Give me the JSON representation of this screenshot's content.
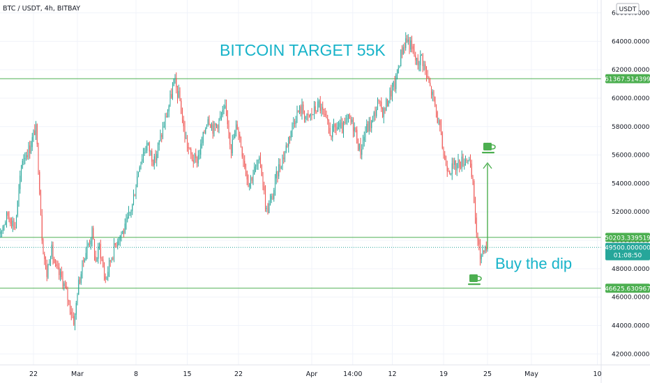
{
  "header": {
    "title": "BTC / USDT, 4h, BITBAY",
    "currency": "USDT"
  },
  "colors": {
    "up": "#26a69a",
    "down": "#ef5350",
    "level": "#4caf50",
    "annot": "#17b3c9",
    "price_badge": "#26a69a",
    "level_badge": "#4caf50"
  },
  "chart_data": {
    "type": "candlestick",
    "title": "BITCOIN TARGET 55K",
    "xlabel": "",
    "ylabel": "",
    "ylim": [
      41500,
      66800
    ],
    "x_ticks": [
      {
        "label": "22",
        "day": 22
      },
      {
        "label": "Mar",
        "day": 28
      },
      {
        "label": "8",
        "day": 36
      },
      {
        "label": "15",
        "day": 43
      },
      {
        "label": "22",
        "day": 50
      },
      {
        "label": "Apr",
        "day": 60
      },
      {
        "label": "14:00",
        "day": 65.6
      },
      {
        "label": "12",
        "day": 71
      },
      {
        "label": "19",
        "day": 78
      },
      {
        "label": "25",
        "day": 84
      },
      {
        "label": "May",
        "day": 90
      },
      {
        "label": "10",
        "day": 99
      }
    ],
    "y_ticks": [
      42000,
      44000,
      46000,
      48000,
      50000,
      52000,
      54000,
      56000,
      58000,
      60000,
      62000,
      64000,
      66000
    ],
    "y_tick_labels": [
      "42000.000000",
      "44000.000000",
      "46000.000000",
      "48000.000000",
      "50000.000000",
      "52000.000000",
      "54000.000000",
      "56000.000000",
      "58000.000000",
      "60000.000000",
      "62000.000000",
      "64000.000000",
      "66000.000000"
    ],
    "levels": [
      {
        "price": 61367.514399,
        "label": "61367.514399"
      },
      {
        "price": 50203.339519,
        "label": "50203.339519"
      },
      {
        "price": 46625.630967,
        "label": "46625.630967"
      }
    ],
    "last_price": {
      "price": 49500,
      "label": "49500.000000",
      "countdown": "01:08:50"
    },
    "annotations": [
      {
        "text": "BITCOIN TARGET 55K"
      },
      {
        "text": "Buy the dip"
      }
    ],
    "anchors": [
      {
        "day": 17.0,
        "price": 50200
      },
      {
        "day": 18.5,
        "price": 51800
      },
      {
        "day": 19.5,
        "price": 51000
      },
      {
        "day": 20.5,
        "price": 55800
      },
      {
        "day": 21.5,
        "price": 56500
      },
      {
        "day": 22.3,
        "price": 58000
      },
      {
        "day": 22.7,
        "price": 55000
      },
      {
        "day": 23.2,
        "price": 50000
      },
      {
        "day": 23.8,
        "price": 47500
      },
      {
        "day": 24.4,
        "price": 49500
      },
      {
        "day": 25.0,
        "price": 48000
      },
      {
        "day": 26.0,
        "price": 47200
      },
      {
        "day": 27.0,
        "price": 45300
      },
      {
        "day": 27.6,
        "price": 44200
      },
      {
        "day": 28.0,
        "price": 46500
      },
      {
        "day": 29.0,
        "price": 49000
      },
      {
        "day": 30.0,
        "price": 50500
      },
      {
        "day": 30.5,
        "price": 48500
      },
      {
        "day": 31.0,
        "price": 49600
      },
      {
        "day": 31.8,
        "price": 47200
      },
      {
        "day": 32.6,
        "price": 48800
      },
      {
        "day": 33.5,
        "price": 50200
      },
      {
        "day": 34.5,
        "price": 50800
      },
      {
        "day": 35.5,
        "price": 52500
      },
      {
        "day": 36.5,
        "price": 55500
      },
      {
        "day": 37.5,
        "price": 56800
      },
      {
        "day": 38.5,
        "price": 55500
      },
      {
        "day": 39.5,
        "price": 57500
      },
      {
        "day": 40.5,
        "price": 59500
      },
      {
        "day": 41.2,
        "price": 61200
      },
      {
        "day": 42.0,
        "price": 59800
      },
      {
        "day": 42.6,
        "price": 57500
      },
      {
        "day": 43.4,
        "price": 56000
      },
      {
        "day": 44.2,
        "price": 55500
      },
      {
        "day": 45.0,
        "price": 56800
      },
      {
        "day": 45.8,
        "price": 58800
      },
      {
        "day": 46.6,
        "price": 57800
      },
      {
        "day": 47.4,
        "price": 58500
      },
      {
        "day": 48.3,
        "price": 59200
      },
      {
        "day": 49.0,
        "price": 56500
      },
      {
        "day": 49.8,
        "price": 58200
      },
      {
        "day": 50.6,
        "price": 56000
      },
      {
        "day": 51.4,
        "price": 54000
      },
      {
        "day": 52.2,
        "price": 55000
      },
      {
        "day": 53.0,
        "price": 55500
      },
      {
        "day": 53.8,
        "price": 52000
      },
      {
        "day": 54.6,
        "price": 53000
      },
      {
        "day": 55.4,
        "price": 55000
      },
      {
        "day": 56.2,
        "price": 56000
      },
      {
        "day": 57.0,
        "price": 57500
      },
      {
        "day": 57.8,
        "price": 58800
      },
      {
        "day": 58.6,
        "price": 59300
      },
      {
        "day": 59.4,
        "price": 58500
      },
      {
        "day": 60.2,
        "price": 59000
      },
      {
        "day": 61.0,
        "price": 59600
      },
      {
        "day": 61.8,
        "price": 58500
      },
      {
        "day": 62.6,
        "price": 57500
      },
      {
        "day": 63.4,
        "price": 58000
      },
      {
        "day": 64.2,
        "price": 57800
      },
      {
        "day": 65.0,
        "price": 58500
      },
      {
        "day": 65.8,
        "price": 58000
      },
      {
        "day": 66.6,
        "price": 56200
      },
      {
        "day": 67.4,
        "price": 57800
      },
      {
        "day": 68.2,
        "price": 58300
      },
      {
        "day": 69.0,
        "price": 59600
      },
      {
        "day": 69.8,
        "price": 59000
      },
      {
        "day": 70.6,
        "price": 60200
      },
      {
        "day": 71.4,
        "price": 61000
      },
      {
        "day": 72.2,
        "price": 63200
      },
      {
        "day": 72.9,
        "price": 64200
      },
      {
        "day": 73.6,
        "price": 63600
      },
      {
        "day": 74.4,
        "price": 62400
      },
      {
        "day": 75.0,
        "price": 63000
      },
      {
        "day": 75.7,
        "price": 61500
      },
      {
        "day": 76.6,
        "price": 60000
      },
      {
        "day": 77.4,
        "price": 58000
      },
      {
        "day": 78.2,
        "price": 55500
      },
      {
        "day": 79.0,
        "price": 55000
      },
      {
        "day": 79.8,
        "price": 55300
      },
      {
        "day": 80.6,
        "price": 55600
      },
      {
        "day": 81.4,
        "price": 55900
      },
      {
        "day": 82.0,
        "price": 53800
      },
      {
        "day": 82.6,
        "price": 50000
      },
      {
        "day": 83.0,
        "price": 48800
      },
      {
        "day": 83.5,
        "price": 49600
      },
      {
        "day": 84.0,
        "price": 49500
      }
    ]
  }
}
